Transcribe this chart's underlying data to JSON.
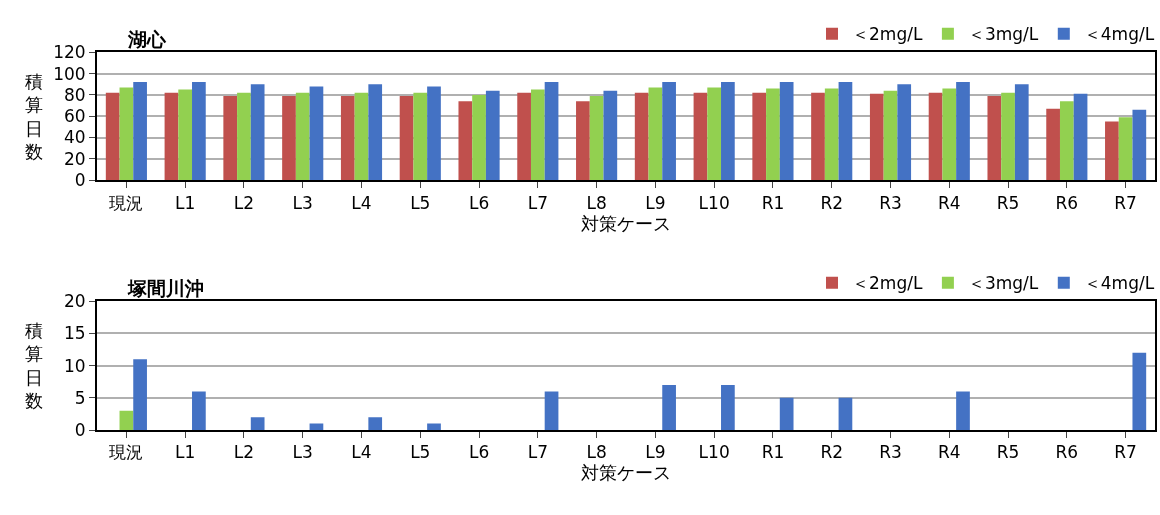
{
  "chart_data": [
    {
      "type": "bar",
      "title": "湖心",
      "xlabel": "対策ケース",
      "ylabel": "積算日数",
      "categories": [
        "現況",
        "L1",
        "L2",
        "L3",
        "L4",
        "L5",
        "L6",
        "L7",
        "L8",
        "L9",
        "L10",
        "R1",
        "R2",
        "R3",
        "R4",
        "R5",
        "R6",
        "R7"
      ],
      "series": [
        {
          "name": "＜2mg/L",
          "color": "#c0504d",
          "values": [
            82,
            82,
            79,
            79,
            79,
            79,
            74,
            82,
            74,
            82,
            82,
            82,
            82,
            81,
            82,
            79,
            67,
            55
          ]
        },
        {
          "name": "＜3mg/L",
          "color": "#92d050",
          "values": [
            87,
            85,
            82,
            82,
            82,
            82,
            80,
            85,
            79,
            87,
            87,
            86,
            86,
            84,
            86,
            82,
            74,
            59
          ]
        },
        {
          "name": "＜4mg/L",
          "color": "#4472c4",
          "values": [
            92,
            92,
            90,
            88,
            90,
            88,
            84,
            92,
            84,
            92,
            92,
            92,
            92,
            90,
            92,
            90,
            81,
            66
          ]
        }
      ],
      "ylim": [
        0,
        120
      ],
      "yticks": [
        0,
        20,
        40,
        60,
        80,
        100,
        120
      ],
      "grid": "y",
      "legend": "top right"
    },
    {
      "type": "bar",
      "title": "塚間川沖",
      "xlabel": "対策ケース",
      "ylabel": "積算日数",
      "categories": [
        "現況",
        "L1",
        "L2",
        "L3",
        "L4",
        "L5",
        "L6",
        "L7",
        "L8",
        "L9",
        "L10",
        "R1",
        "R2",
        "R3",
        "R4",
        "R5",
        "R6",
        "R7"
      ],
      "series": [
        {
          "name": "＜2mg/L",
          "color": "#c0504d",
          "values": [
            0,
            0,
            0,
            0,
            0,
            0,
            0,
            0,
            0,
            0,
            0,
            0,
            0,
            0,
            0,
            0,
            0,
            0
          ]
        },
        {
          "name": "＜3mg/L",
          "color": "#92d050",
          "values": [
            3,
            0,
            0,
            0,
            0,
            0,
            0,
            0,
            0,
            0,
            0,
            0,
            0,
            0,
            0,
            0,
            0,
            0
          ]
        },
        {
          "name": "＜4mg/L",
          "color": "#4472c4",
          "values": [
            11,
            6,
            2,
            1,
            2,
            1,
            0,
            6,
            0,
            7,
            7,
            5,
            5,
            0,
            6,
            0,
            0,
            12
          ]
        }
      ],
      "ylim": [
        0,
        20
      ],
      "yticks": [
        0,
        5,
        10,
        15,
        20
      ],
      "grid": "y",
      "legend": "top right"
    }
  ]
}
